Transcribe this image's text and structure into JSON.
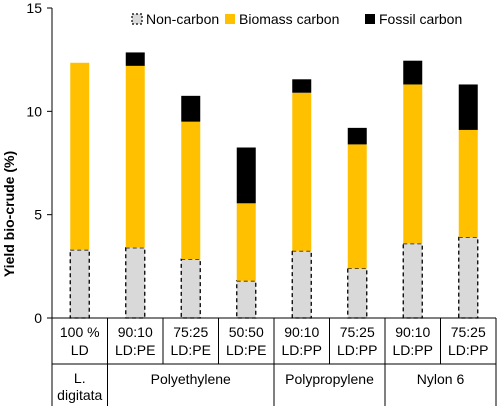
{
  "chart_data": {
    "type": "bar",
    "stacked": true,
    "ylabel": "Yield bio-crude (%)",
    "ylim": [
      0,
      15
    ],
    "yticks": [
      0,
      5,
      10,
      15
    ],
    "grid": false,
    "legend_position": "top",
    "categories": [
      [
        "100 %",
        "LD"
      ],
      [
        "90:10",
        "LD:PE"
      ],
      [
        "75:25",
        "LD:PE"
      ],
      [
        "50:50",
        "LD:PE"
      ],
      [
        "90:10",
        "LD:PP"
      ],
      [
        "75:25",
        "LD:PP"
      ],
      [
        "90:10",
        "LD:PP"
      ],
      [
        "75:25",
        "LD:PP"
      ]
    ],
    "groups": [
      {
        "label": [
          "L.",
          "digitata"
        ],
        "count": 1
      },
      {
        "label": [
          "Polyethylene"
        ],
        "count": 3
      },
      {
        "label": [
          "Polypropylene"
        ],
        "count": 2
      },
      {
        "label": [
          "Nylon 6"
        ],
        "count": 2
      }
    ],
    "series": [
      {
        "name": "Non-carbon",
        "color": "#d9d9d9",
        "style": "dashed",
        "values": [
          3.3,
          3.4,
          2.85,
          1.8,
          3.25,
          2.4,
          3.6,
          3.9
        ]
      },
      {
        "name": "Biomass carbon",
        "color": "#ffc000",
        "style": "solid",
        "values": [
          9.05,
          8.8,
          6.65,
          3.75,
          7.65,
          6.0,
          7.7,
          5.2
        ]
      },
      {
        "name": "Fossil carbon",
        "color": "#000000",
        "style": "solid",
        "values": [
          0.0,
          0.65,
          1.25,
          2.7,
          0.65,
          0.8,
          1.15,
          2.2
        ]
      }
    ]
  }
}
